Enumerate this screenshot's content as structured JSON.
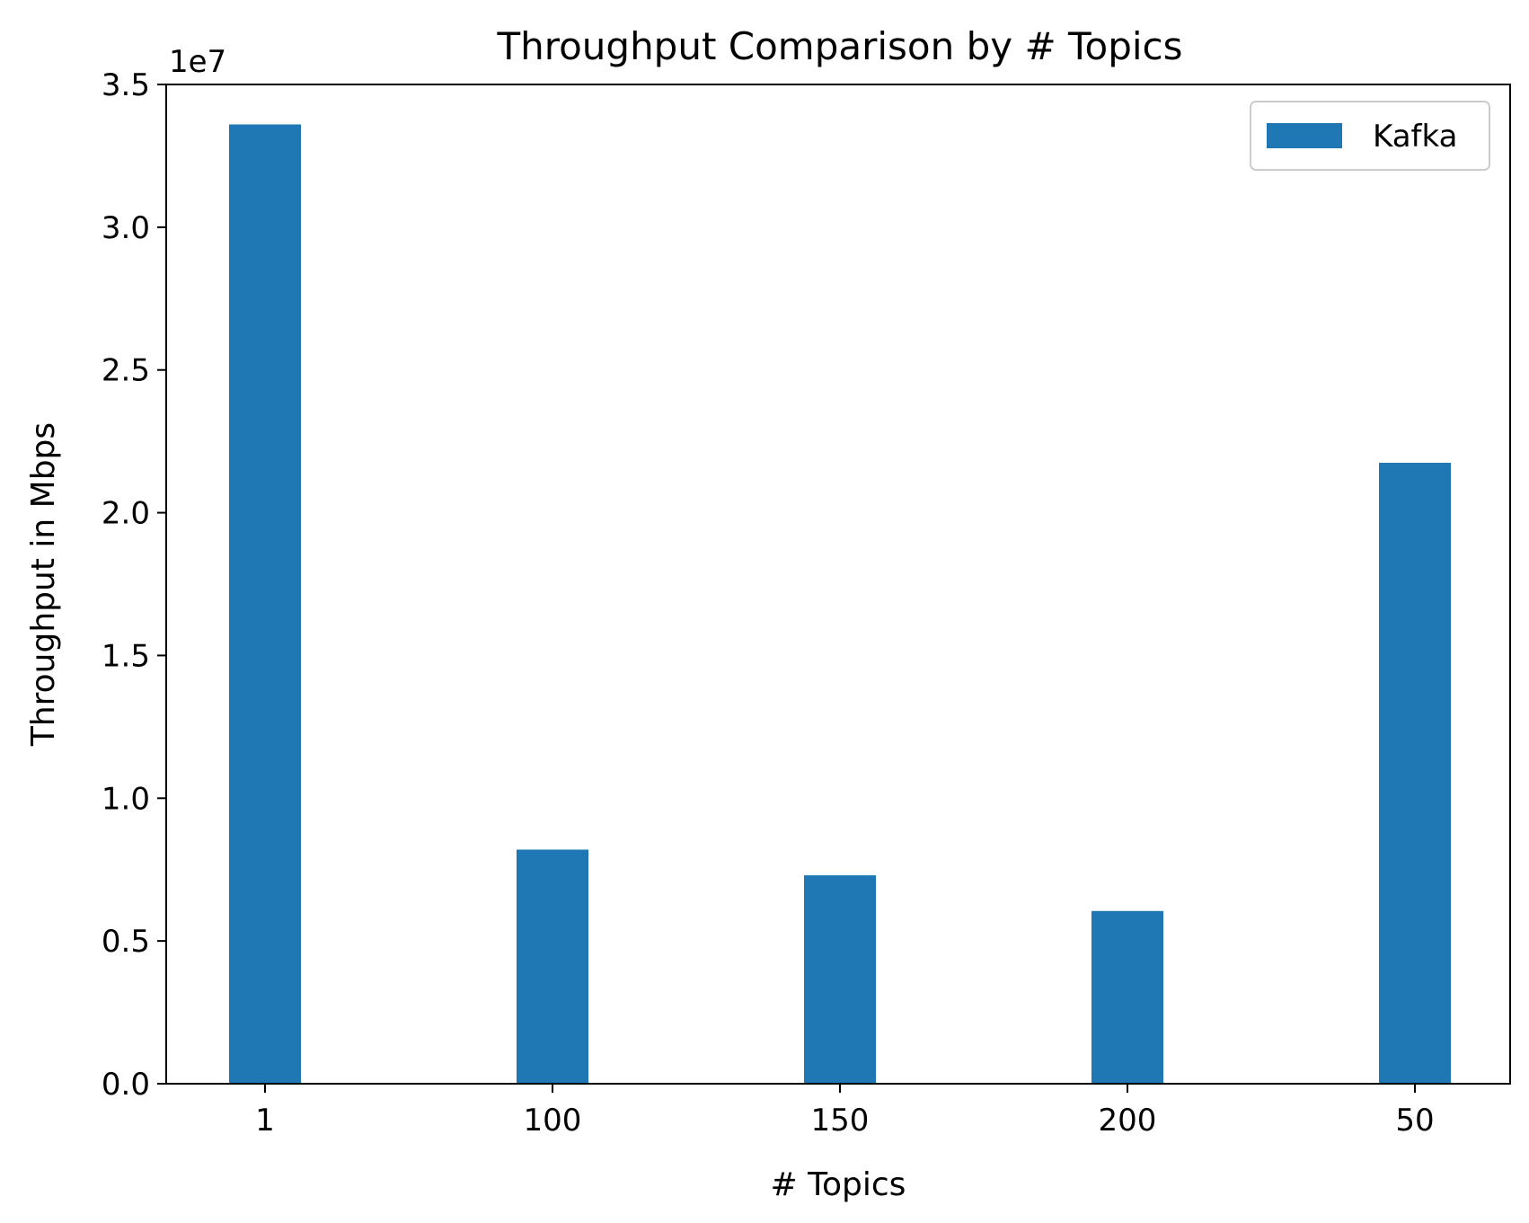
{
  "chart_data": {
    "type": "bar",
    "title": "Throughput Comparison by # Topics",
    "xlabel": "# Topics",
    "ylabel": "Throughput in Mbps",
    "y_offset_label": "1e7",
    "categories": [
      "1",
      "100",
      "150",
      "200",
      "50"
    ],
    "series": [
      {
        "name": "Kafka",
        "color": "#1f77b4",
        "values": [
          33600000,
          8200000,
          7300000,
          6050000,
          21750000
        ]
      }
    ],
    "ylim": [
      0,
      35000000
    ],
    "yticks": [
      0,
      5000000,
      10000000,
      15000000,
      20000000,
      25000000,
      30000000,
      35000000
    ],
    "ytick_labels": [
      "0.0",
      "0.5",
      "1.0",
      "1.5",
      "2.0",
      "2.5",
      "3.0",
      "3.5"
    ],
    "grid": false,
    "legend_position": "top-right"
  }
}
